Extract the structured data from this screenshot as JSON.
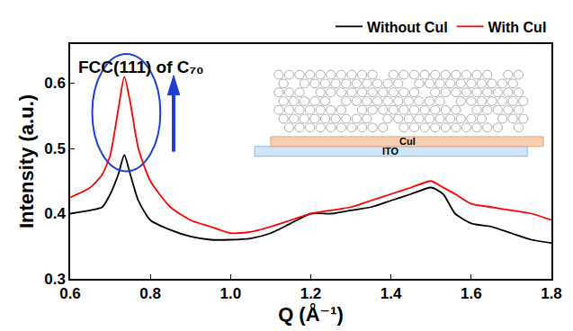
{
  "chart_data": {
    "type": "line",
    "x_label": "Q (Å⁻¹)",
    "y_label": "Intensity (a.u.)",
    "annotations": [
      "FCC(111) of C₇₀",
      "CuI",
      "ITO"
    ],
    "x": [
      0.6,
      0.65,
      0.68,
      0.7,
      0.72,
      0.735,
      0.75,
      0.77,
      0.8,
      0.85,
      0.9,
      0.95,
      1.0,
      1.05,
      1.1,
      1.15,
      1.2,
      1.25,
      1.3,
      1.35,
      1.4,
      1.45,
      1.5,
      1.53,
      1.56,
      1.6,
      1.65,
      1.7,
      1.75,
      1.8
    ],
    "series": [
      {
        "name": "Without CuI",
        "color": "#000000",
        "values": [
          0.4,
          0.405,
          0.41,
          0.43,
          0.46,
          0.49,
          0.46,
          0.42,
          0.39,
          0.375,
          0.365,
          0.36,
          0.36,
          0.362,
          0.37,
          0.385,
          0.4,
          0.4,
          0.405,
          0.41,
          0.42,
          0.43,
          0.44,
          0.43,
          0.4,
          0.385,
          0.38,
          0.37,
          0.36,
          0.355
        ]
      },
      {
        "name": "With CuI",
        "color": "#ff0000",
        "values": [
          0.425,
          0.44,
          0.46,
          0.49,
          0.56,
          0.61,
          0.57,
          0.5,
          0.45,
          0.41,
          0.39,
          0.38,
          0.37,
          0.372,
          0.38,
          0.39,
          0.4,
          0.405,
          0.41,
          0.42,
          0.43,
          0.44,
          0.45,
          0.44,
          0.43,
          0.415,
          0.41,
          0.405,
          0.4,
          0.39
        ]
      }
    ],
    "xlim": [
      0.6,
      1.8
    ],
    "xticks": [
      0.6,
      0.8,
      {
        "value": 1,
        "label": "1.0"
      },
      1.2,
      1.4,
      1.6,
      1.8
    ],
    "ylim": [
      0.3,
      0.66
    ],
    "yticks": [
      0.3,
      0.4,
      0.5,
      0.6
    ],
    "grid": false,
    "legend": "top"
  }
}
